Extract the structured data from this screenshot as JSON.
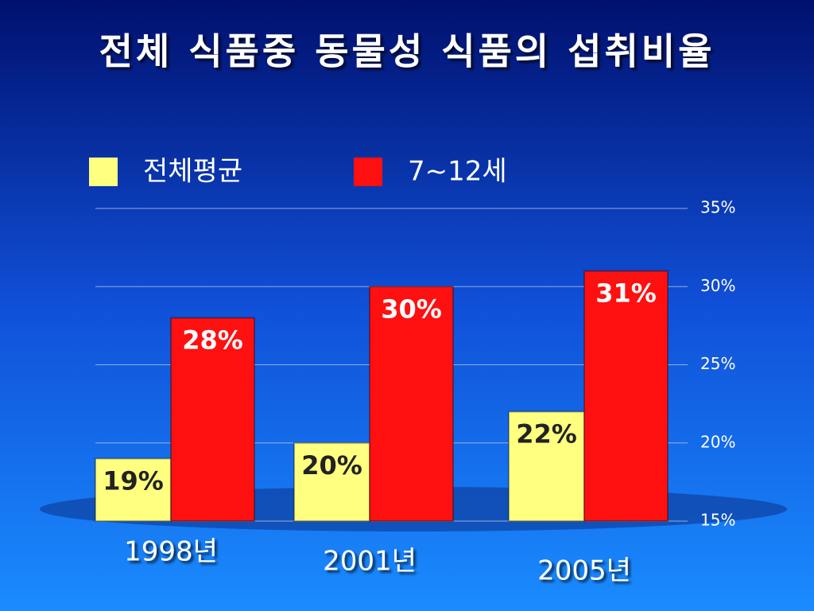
{
  "chart_data": {
    "type": "bar",
    "title": "전체 식품중 동물성 식품의 섭취비율",
    "categories": [
      "1998년",
      "2001년",
      "2005년"
    ],
    "series": [
      {
        "name": "전체평균",
        "color": "#ffff80",
        "values": [
          19,
          20,
          22
        ],
        "value_labels": [
          "19%",
          "20%",
          "22%"
        ]
      },
      {
        "name": "7~12세",
        "color": "#ff1010",
        "values": [
          28,
          30,
          31
        ],
        "value_labels": [
          "28%",
          "30%",
          "31%"
        ]
      }
    ],
    "ylim": [
      15,
      35
    ],
    "yticks": [
      {
        "value": 15,
        "label": "15%"
      },
      {
        "value": 20,
        "label": "20%"
      },
      {
        "value": 25,
        "label": "25%"
      },
      {
        "value": 30,
        "label": "30%"
      },
      {
        "value": 35,
        "label": "35%"
      }
    ],
    "grid": true
  }
}
